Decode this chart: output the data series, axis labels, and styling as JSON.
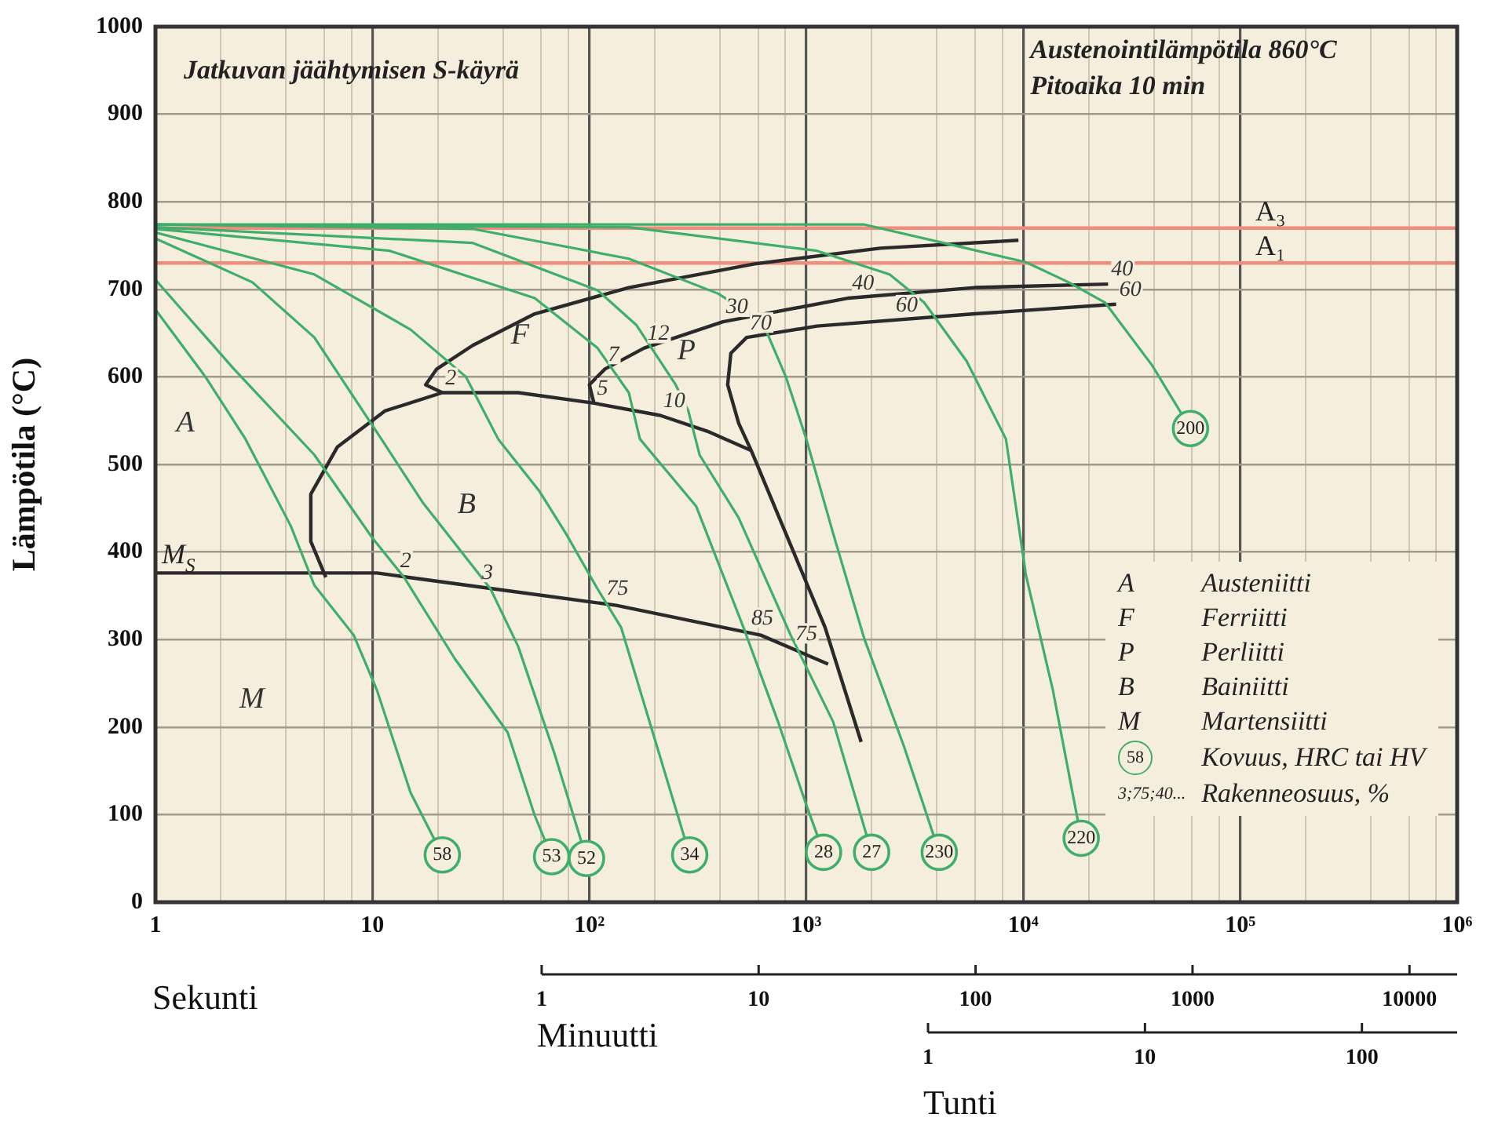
{
  "chart_data": {
    "type": "line",
    "title": "Jatkuvan jäähtymisen S-käyrä",
    "subtitle": "Austenointilämpötila 860°C",
    "xlabel": "Sekunti",
    "ylabel": "Lämpötila (°C)",
    "log": "x",
    "grid": true,
    "marker": "none",
    "xlim": [
      1,
      1000000
    ],
    "xticks": [
      1,
      {
        "value": 2,
        "label": null
      },
      {
        "value": 4,
        "label": null
      },
      {
        "value": 6,
        "label": null
      },
      {
        "value": 8,
        "label": null
      },
      10,
      {
        "value": 20,
        "label": null
      },
      {
        "value": 40,
        "label": null
      },
      {
        "value": 60,
        "label": null
      },
      {
        "value": 80,
        "label": null
      },
      {
        "value": 100,
        "label": "10²"
      },
      {
        "value": 200,
        "label": null
      },
      {
        "value": 400,
        "label": null
      },
      {
        "value": 600,
        "label": null
      },
      {
        "value": 800,
        "label": null
      },
      {
        "value": 1000,
        "label": "10³"
      },
      {
        "value": 2000,
        "label": null
      },
      {
        "value": 4000,
        "label": null
      },
      {
        "value": 6000,
        "label": null
      },
      {
        "value": 8000,
        "label": null
      },
      {
        "value": 10000,
        "label": "10⁴"
      },
      {
        "value": 20000,
        "label": null
      },
      {
        "value": 40000,
        "label": null
      },
      {
        "value": 60000,
        "label": null
      },
      {
        "value": 80000,
        "label": null
      },
      {
        "value": 100000,
        "label": "10⁵"
      },
      {
        "value": 200000,
        "label": null
      },
      {
        "value": 400000,
        "label": null
      },
      {
        "value": 600000,
        "label": null
      },
      {
        "value": 800000,
        "label": null
      },
      {
        "value": 1000000,
        "label": "10⁶"
      }
    ],
    "ylim": [
      0,
      1000
    ],
    "yticks": [
      0,
      100,
      200,
      300,
      400,
      500,
      600,
      700,
      800,
      900,
      1000
    ],
    "ref_lines": [
      {
        "axis": "y",
        "value": 770,
        "label": "A₃",
        "color": "#ef8c7c"
      },
      {
        "axis": "y",
        "value": 730,
        "label": "A₁",
        "color": "#ef8c7c"
      }
    ],
    "series": [
      {
        "color": "#3fae6a",
        "x": [
          1,
          1.7,
          2.6,
          4.2,
          5.4,
          8.2,
          10.5,
          15,
          21
        ],
        "values": [
          677,
          600,
          529,
          430,
          362,
          305,
          242,
          125,
          54
        ]
      },
      {
        "color": "#3fae6a",
        "x": [
          1,
          2.3,
          5.4,
          10,
          14,
          24,
          42,
          56,
          67
        ],
        "values": [
          711,
          609,
          511,
          416,
          371,
          278,
          194,
          99,
          52
        ]
      },
      {
        "color": "#3fae6a",
        "x": [
          1,
          2.8,
          5.4,
          11,
          17,
          35,
          47,
          69,
          97
        ],
        "values": [
          758,
          708,
          645,
          529,
          457,
          358,
          292,
          170,
          50
        ]
      },
      {
        "color": "#3fae6a",
        "x": [
          1,
          5.4,
          15,
          27,
          38,
          59,
          78,
          109,
          140,
          290
        ],
        "values": [
          765,
          717,
          654,
          600,
          529,
          469,
          421,
          358,
          314,
          54
        ]
      },
      {
        "color": "#3fae6a",
        "x": [
          1,
          12,
          56,
          109,
          152,
          171,
          311,
          513,
          741,
          1000,
          1200
        ],
        "values": [
          769,
          744,
          690,
          633,
          582,
          529,
          452,
          314,
          206,
          111,
          57
        ]
      },
      {
        "color": "#3fae6a",
        "x": [
          1,
          29,
          109,
          165,
          250,
          286,
          322,
          488,
          847,
          1330,
          2000
        ],
        "values": [
          771,
          753,
          699,
          659,
          591,
          561,
          511,
          439,
          305,
          206,
          57
        ]
      },
      {
        "color": "#3fae6a",
        "x": [
          1,
          29,
          152,
          393,
          627,
          805,
          1000,
          1330,
          1850,
          2810,
          4100
        ],
        "values": [
          774,
          769,
          735,
          695,
          663,
          600,
          529,
          421,
          301,
          179,
          57
        ]
      },
      {
        "color": "#3fae6a",
        "x": [
          1,
          152,
          1120,
          2420,
          3490,
          5480,
          8320,
          10300,
          13700,
          18500
        ],
        "values": [
          774,
          771,
          744,
          717,
          685,
          618,
          529,
          373,
          242,
          73
        ]
      },
      {
        "color": "#3fae6a",
        "x": [
          1,
          1850,
          5040,
          10300,
          16200,
          23800,
          39300,
          59000
        ],
        "values": [
          774,
          774,
          749,
          731,
          708,
          685,
          613,
          541
        ]
      },
      {
        "color": "#2a2a2a",
        "x": [
          9500,
          2190,
          577,
          152,
          56,
          29,
          19.8,
          17.6,
          21
        ],
        "values": [
          756,
          747,
          729,
          702,
          672,
          636,
          609,
          591,
          582
        ]
      },
      {
        "color": "#2a2a2a",
        "x": [
          6.1,
          5.2,
          5.2,
          6.9,
          11.4,
          21,
          47,
          105,
          212,
          349,
          557
        ],
        "values": [
          371,
          412,
          466,
          520,
          561,
          582,
          582,
          570,
          556,
          538,
          516
        ]
      },
      {
        "color": "#2a2a2a",
        "x": [
          24600,
          5960,
          1570,
          413,
          179,
          118,
          100,
          105
        ],
        "values": [
          706,
          702,
          690,
          663,
          633,
          609,
          591,
          570
        ]
      },
      {
        "color": "#2a2a2a",
        "x": [
          26800,
          5960,
          1120,
          531,
          449,
          434,
          488,
          557,
          805,
          1220,
          1790
        ],
        "values": [
          683,
          672,
          658,
          645,
          627,
          591,
          547,
          516,
          421,
          314,
          183
        ]
      },
      {
        "name": "M$_{S}$",
        "color": "#2a2a2a",
        "x": [
          1,
          10.5,
          14.7,
          36,
          133,
          617,
          1260
        ],
        "values": [
          376,
          376,
          371,
          358,
          339,
          305,
          272
        ]
      }
    ],
    "annotations": [
      "Pitoaika 10 min",
      "A",
      "Austeniitti",
      "F",
      "Ferriitti",
      "P",
      "Perliitti",
      "B",
      "Bainiitti",
      "M",
      "Martensiitti",
      "58",
      "Kovuus, HRC tai HV",
      "3;75;40...",
      "Rakenneosuus, %",
      "1",
      "10",
      "100",
      "1000",
      "10000",
      "Minuutti",
      "1",
      "10",
      "100",
      "Tunti",
      "A",
      "F",
      "P",
      "B",
      "M",
      {
        "text": "58",
        "x": 21,
        "y": 54
      },
      {
        "text": "53",
        "x": 67,
        "y": 52
      },
      {
        "text": "52",
        "x": 97,
        "y": 50
      },
      {
        "text": "34",
        "x": 290,
        "y": 54
      },
      {
        "text": "28",
        "x": 1200,
        "y": 57
      },
      {
        "text": "27",
        "x": 2000,
        "y": 57
      },
      {
        "text": "230",
        "x": 4100,
        "y": 57
      },
      {
        "text": "220",
        "x": 18500,
        "y": 73
      },
      {
        "text": "200",
        "x": 59000,
        "y": 541
      },
      {
        "text": "2",
        "x": 13,
        "y": 373
      },
      {
        "text": "3",
        "x": 31,
        "y": 360
      },
      {
        "text": "75",
        "x": 116,
        "y": 342
      },
      {
        "text": "85",
        "x": 540,
        "y": 308
      },
      {
        "text": "75",
        "x": 860,
        "y": 290
      },
      {
        "text": "2",
        "x": 21,
        "y": 582
      },
      {
        "text": "7",
        "x": 118,
        "y": 609
      },
      {
        "text": "12",
        "x": 179,
        "y": 633
      },
      {
        "text": "30",
        "x": 413,
        "y": 663
      },
      {
        "text": "70",
        "x": 531,
        "y": 645
      },
      {
        "text": "5",
        "x": 105,
        "y": 570
      },
      {
        "text": "10",
        "x": 212,
        "y": 556
      },
      {
        "text": "40",
        "x": 1570,
        "y": 690
      },
      {
        "text": "60",
        "x": 2500,
        "y": 665
      },
      {
        "text": "40",
        "x": 24600,
        "y": 706
      },
      {
        "text": "60",
        "x": 26800,
        "y": 683
      }
    ]
  }
}
